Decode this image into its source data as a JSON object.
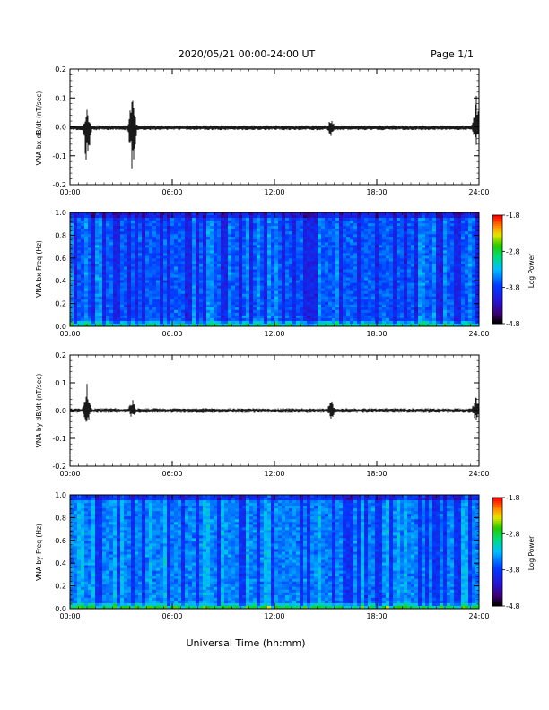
{
  "header": {
    "title": "2020/05/21  00:00-24:00 UT",
    "page_label": "Page 1/1"
  },
  "xaxis_label": "Universal Time (hh:mm)",
  "chart_data": [
    {
      "type": "line",
      "ylabel": "VNA bx dB/dt (nT/sec)",
      "ylim": [
        -0.2,
        0.2
      ],
      "yticks": [
        "-0.2",
        "-0.1",
        "0.0",
        "0.1",
        "0.2"
      ],
      "xlim": [
        "00:00",
        "24:00"
      ],
      "xticks": [
        "00:00",
        "06:00",
        "12:00",
        "18:00",
        "24:00"
      ],
      "baseline": -0.003,
      "noise_amplitude": 0.006,
      "bursts": [
        {
          "time": "01:00",
          "max": 0.07,
          "min": -0.14
        },
        {
          "time": "03:40",
          "max": 0.13,
          "min": -0.16
        },
        {
          "time": "15:20",
          "max": 0.03,
          "min": -0.04
        },
        {
          "time": "23:50",
          "max": 0.12,
          "min": -0.07
        }
      ]
    },
    {
      "type": "heatmap",
      "ylabel": "VNA bx Freq (Hz)",
      "ylim": [
        0.0,
        1.0
      ],
      "yticks": [
        "0.0",
        "0.2",
        "0.4",
        "0.6",
        "0.8",
        "1.0"
      ],
      "xlim": [
        "00:00",
        "24:00"
      ],
      "xticks": [
        "00:00",
        "06:00",
        "12:00",
        "18:00",
        "24:00"
      ],
      "colorbar": {
        "label": "Log Power",
        "min": -4.8,
        "max": -1.8,
        "ticks": [
          "-1.8",
          "-2.8",
          "-3.8",
          "-4.8"
        ]
      }
    },
    {
      "type": "line",
      "ylabel": "VNA by dB/dt (nT/sec)",
      "ylim": [
        -0.2,
        0.2
      ],
      "yticks": [
        "-0.2",
        "-0.1",
        "0.0",
        "0.1",
        "0.2"
      ],
      "xlim": [
        "00:00",
        "24:00"
      ],
      "xticks": [
        "00:00",
        "06:00",
        "12:00",
        "18:00",
        "24:00"
      ],
      "baseline": 0.0,
      "noise_amplitude": 0.006,
      "bursts": [
        {
          "time": "01:00",
          "max": 0.1,
          "min": -0.05
        },
        {
          "time": "03:40",
          "max": 0.05,
          "min": -0.03
        },
        {
          "time": "15:20",
          "max": 0.04,
          "min": -0.03
        },
        {
          "time": "23:50",
          "max": 0.06,
          "min": -0.04
        }
      ]
    },
    {
      "type": "heatmap",
      "ylabel": "VNA by Freq (Hz)",
      "ylim": [
        0.0,
        1.0
      ],
      "yticks": [
        "0.0",
        "0.2",
        "0.4",
        "0.6",
        "0.8",
        "1.0"
      ],
      "xlim": [
        "00:00",
        "24:00"
      ],
      "xticks": [
        "00:00",
        "06:00",
        "12:00",
        "18:00",
        "24:00"
      ],
      "colorbar": {
        "label": "Log Power",
        "min": -4.8,
        "max": -1.8,
        "ticks": [
          "-1.8",
          "-2.8",
          "-3.8",
          "-4.8"
        ]
      }
    }
  ]
}
